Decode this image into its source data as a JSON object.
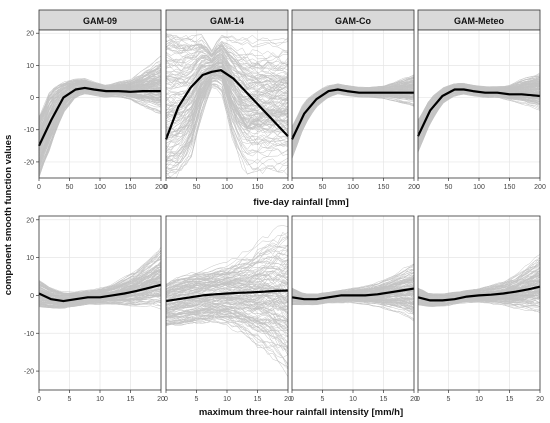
{
  "figure": {
    "ylabel": "component smooth function values",
    "row_xlabels": [
      "five-day rainfall [mm]",
      "maximum three-hour rainfall intensity [mm/h]"
    ],
    "panel_titles": [
      "GAM-09",
      "GAM-14",
      "GAM-Co",
      "GAM-Meteo"
    ]
  },
  "chart_data": [
    {
      "type": "line",
      "panel": "GAM-09",
      "row": 1,
      "xlabel": "five-day rainfall [mm]",
      "xlim": [
        0,
        200
      ],
      "ylim": [
        -25,
        21
      ],
      "xticks": [
        0,
        50,
        100,
        150,
        200
      ],
      "yticks": [
        -20,
        -10,
        0,
        10,
        20
      ],
      "grid": true,
      "series": [
        {
          "x": [
            0,
            20,
            40,
            60,
            75,
            90,
            110,
            130,
            150,
            170,
            200
          ],
          "values": [
            -15,
            -7,
            0,
            2.5,
            3,
            2.5,
            2,
            2,
            1.8,
            2,
            2
          ]
        }
      ],
      "band": {
        "lower": [
          -25,
          -15,
          -5,
          0,
          1,
          0.5,
          0,
          0,
          -1,
          -3,
          -6
        ],
        "upper": [
          -6,
          3,
          5,
          6,
          6,
          5,
          4,
          5,
          6,
          9,
          14
        ]
      }
    },
    {
      "type": "line",
      "panel": "GAM-14",
      "row": 1,
      "xlabel": "five-day rainfall [mm]",
      "xlim": [
        0,
        200
      ],
      "ylim": [
        -25,
        21
      ],
      "xticks": [
        0,
        50,
        100,
        150,
        200
      ],
      "yticks": [
        -20,
        -10,
        0,
        10,
        20
      ],
      "grid": true,
      "series": [
        {
          "x": [
            0,
            20,
            40,
            60,
            75,
            90,
            110,
            130,
            150,
            170,
            200
          ],
          "values": [
            -13,
            -3,
            3,
            7,
            8,
            8.5,
            6,
            2,
            -2,
            -6,
            -12
          ]
        }
      ],
      "band": {
        "lower": [
          -25,
          -25,
          -20,
          -5,
          3,
          2,
          -15,
          -25,
          -25,
          -25,
          -25
        ],
        "upper": [
          20,
          20,
          20,
          20,
          15,
          20,
          20,
          20,
          20,
          20,
          20
        ]
      }
    },
    {
      "type": "line",
      "panel": "GAM-Co",
      "row": 1,
      "xlabel": "five-day rainfall [mm]",
      "xlim": [
        0,
        200
      ],
      "ylim": [
        -25,
        21
      ],
      "xticks": [
        0,
        50,
        100,
        150,
        200
      ],
      "yticks": [
        -20,
        -10,
        0,
        10,
        20
      ],
      "grid": true,
      "series": [
        {
          "x": [
            0,
            20,
            40,
            60,
            75,
            90,
            110,
            130,
            150,
            170,
            200
          ],
          "values": [
            -13,
            -5,
            -0.5,
            2,
            2.5,
            2,
            1.5,
            1.5,
            1.5,
            1.5,
            1.5
          ]
        }
      ],
      "band": {
        "lower": [
          -19,
          -9,
          -3,
          0,
          1,
          0.5,
          0,
          0,
          -0.5,
          -1.5,
          -3
        ],
        "upper": [
          -9,
          -1,
          2,
          4,
          4.5,
          4,
          3.5,
          3.5,
          4,
          5.5,
          8
        ]
      }
    },
    {
      "type": "line",
      "panel": "GAM-Meteo",
      "row": 1,
      "xlabel": "five-day rainfall [mm]",
      "xlim": [
        0,
        200
      ],
      "ylim": [
        -25,
        21
      ],
      "xticks": [
        0,
        50,
        100,
        150,
        200
      ],
      "yticks": [
        -20,
        -10,
        0,
        10,
        20
      ],
      "grid": true,
      "series": [
        {
          "x": [
            0,
            20,
            40,
            60,
            75,
            90,
            110,
            130,
            150,
            170,
            200
          ],
          "values": [
            -12,
            -4,
            0.5,
            2.5,
            2.5,
            2,
            1.5,
            1.5,
            1,
            1,
            0.5
          ]
        }
      ],
      "band": {
        "lower": [
          -17,
          -8,
          -2,
          0.5,
          1,
          0.5,
          0,
          0,
          -1,
          -2,
          -4
        ],
        "upper": [
          -7,
          0,
          3,
          4.5,
          4.5,
          4,
          3.5,
          3.5,
          4,
          6,
          8
        ]
      }
    },
    {
      "type": "line",
      "panel": "GAM-09",
      "row": 2,
      "xlabel": "maximum three-hour rainfall intensity [mm/h]",
      "xlim": [
        0,
        20
      ],
      "ylim": [
        -25,
        21
      ],
      "xticks": [
        0,
        5,
        10,
        15,
        20
      ],
      "yticks": [
        -20,
        -10,
        0,
        10,
        20
      ],
      "grid": true,
      "series": [
        {
          "x": [
            0,
            2,
            4,
            6,
            8,
            10,
            12,
            14,
            16,
            18,
            20
          ],
          "values": [
            0.5,
            -1,
            -1.5,
            -1,
            -0.5,
            -0.5,
            0,
            0.5,
            1.2,
            2,
            2.8
          ]
        }
      ],
      "band": {
        "lower": [
          -3,
          -3.5,
          -3.5,
          -3,
          -2.5,
          -2.5,
          -2.5,
          -3,
          -3.5,
          -3.5,
          -4
        ],
        "upper": [
          4,
          2,
          1,
          1,
          1.5,
          2,
          3,
          5,
          7,
          10,
          13
        ]
      }
    },
    {
      "type": "line",
      "panel": "GAM-14",
      "row": 2,
      "xlabel": "maximum three-hour rainfall intensity [mm/h]",
      "xlim": [
        0,
        20
      ],
      "ylim": [
        -25,
        21
      ],
      "xticks": [
        0,
        5,
        10,
        15,
        20
      ],
      "yticks": [
        -20,
        -10,
        0,
        10,
        20
      ],
      "grid": true,
      "series": [
        {
          "x": [
            0,
            2,
            4,
            6,
            8,
            10,
            12,
            14,
            16,
            18,
            20
          ],
          "values": [
            -1.5,
            -1,
            -0.5,
            0,
            0.3,
            0.5,
            0.7,
            0.8,
            1,
            1.2,
            1.3
          ]
        }
      ],
      "band": {
        "lower": [
          -8,
          -8,
          -8,
          -8,
          -8,
          -9,
          -11,
          -14,
          -17,
          -20,
          -24
        ],
        "upper": [
          3,
          5,
          6,
          7,
          8,
          9,
          11,
          13,
          16,
          18,
          20
        ]
      }
    },
    {
      "type": "line",
      "panel": "GAM-Co",
      "row": 2,
      "xlabel": "maximum three-hour rainfall intensity [mm/h]",
      "xlim": [
        0,
        20
      ],
      "ylim": [
        -25,
        21
      ],
      "xticks": [
        0,
        5,
        10,
        15,
        20
      ],
      "yticks": [
        -20,
        -10,
        0,
        10,
        20
      ],
      "grid": true,
      "series": [
        {
          "x": [
            0,
            2,
            4,
            6,
            8,
            10,
            12,
            14,
            16,
            18,
            20
          ],
          "values": [
            -0.5,
            -1,
            -1,
            -0.5,
            0,
            0,
            0,
            0.3,
            0.8,
            1.3,
            1.8
          ]
        }
      ],
      "band": {
        "lower": [
          -2.5,
          -2.5,
          -2.5,
          -2,
          -2,
          -2,
          -2.5,
          -3,
          -4,
          -5,
          -7
        ],
        "upper": [
          2,
          0.5,
          0.5,
          1,
          1.5,
          2,
          2.5,
          3.5,
          5,
          7,
          9
        ]
      }
    },
    {
      "type": "line",
      "panel": "GAM-Meteo",
      "row": 2,
      "xlabel": "maximum three-hour rainfall intensity [mm/h]",
      "xlim": [
        0,
        20
      ],
      "ylim": [
        -25,
        21
      ],
      "xticks": [
        0,
        5,
        10,
        15,
        20
      ],
      "yticks": [
        -20,
        -10,
        0,
        10,
        20
      ],
      "grid": true,
      "series": [
        {
          "x": [
            0,
            2,
            4,
            6,
            8,
            10,
            12,
            14,
            16,
            18,
            20
          ],
          "values": [
            -0.5,
            -1.3,
            -1.3,
            -1,
            -0.3,
            0,
            0.2,
            0.5,
            1,
            1.6,
            2.3
          ]
        }
      ],
      "band": {
        "lower": [
          -2.5,
          -3,
          -3,
          -2.5,
          -2,
          -2,
          -2.5,
          -3,
          -4,
          -5,
          -6
        ],
        "upper": [
          2,
          0.5,
          0.5,
          1,
          1.5,
          2,
          3,
          4,
          6,
          9,
          12
        ]
      }
    }
  ]
}
